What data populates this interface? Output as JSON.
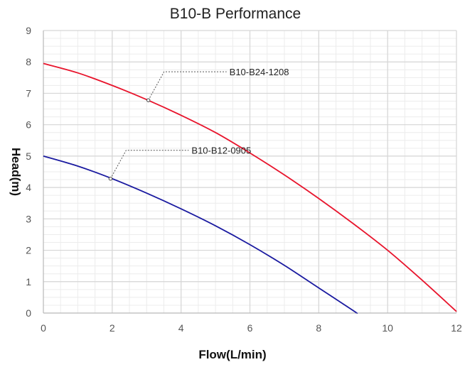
{
  "chart_data": {
    "type": "line",
    "title": "B10-B Performance",
    "xlabel": "Flow(L/min)",
    "ylabel": "Head(m)",
    "xlim": [
      0,
      12
    ],
    "ylim": [
      0,
      9
    ],
    "x_ticks": [
      0,
      2,
      4,
      6,
      8,
      10,
      12
    ],
    "y_ticks": [
      0,
      1,
      2,
      3,
      4,
      5,
      6,
      7,
      8,
      9
    ],
    "grid": true,
    "legend": "none",
    "series": [
      {
        "name": "B10-B24-1208",
        "color": "#e8142c",
        "x": [
          0,
          1,
          2,
          3,
          4,
          5,
          6,
          7,
          8,
          9,
          10,
          11,
          12
        ],
        "y": [
          7.95,
          7.65,
          7.25,
          6.8,
          6.3,
          5.75,
          5.1,
          4.4,
          3.65,
          2.85,
          2.0,
          1.05,
          0.05
        ],
        "callout_point": [
          3.05,
          6.78
        ]
      },
      {
        "name": "B10-B12-0905",
        "color": "#1a1aa0",
        "x": [
          0,
          1,
          2,
          3,
          4,
          5,
          6,
          7,
          8,
          9,
          9.1
        ],
        "y": [
          5.0,
          4.68,
          4.28,
          3.82,
          3.32,
          2.78,
          2.18,
          1.52,
          0.8,
          0.08,
          0.0
        ],
        "callout_point": [
          1.95,
          4.28
        ]
      }
    ]
  }
}
